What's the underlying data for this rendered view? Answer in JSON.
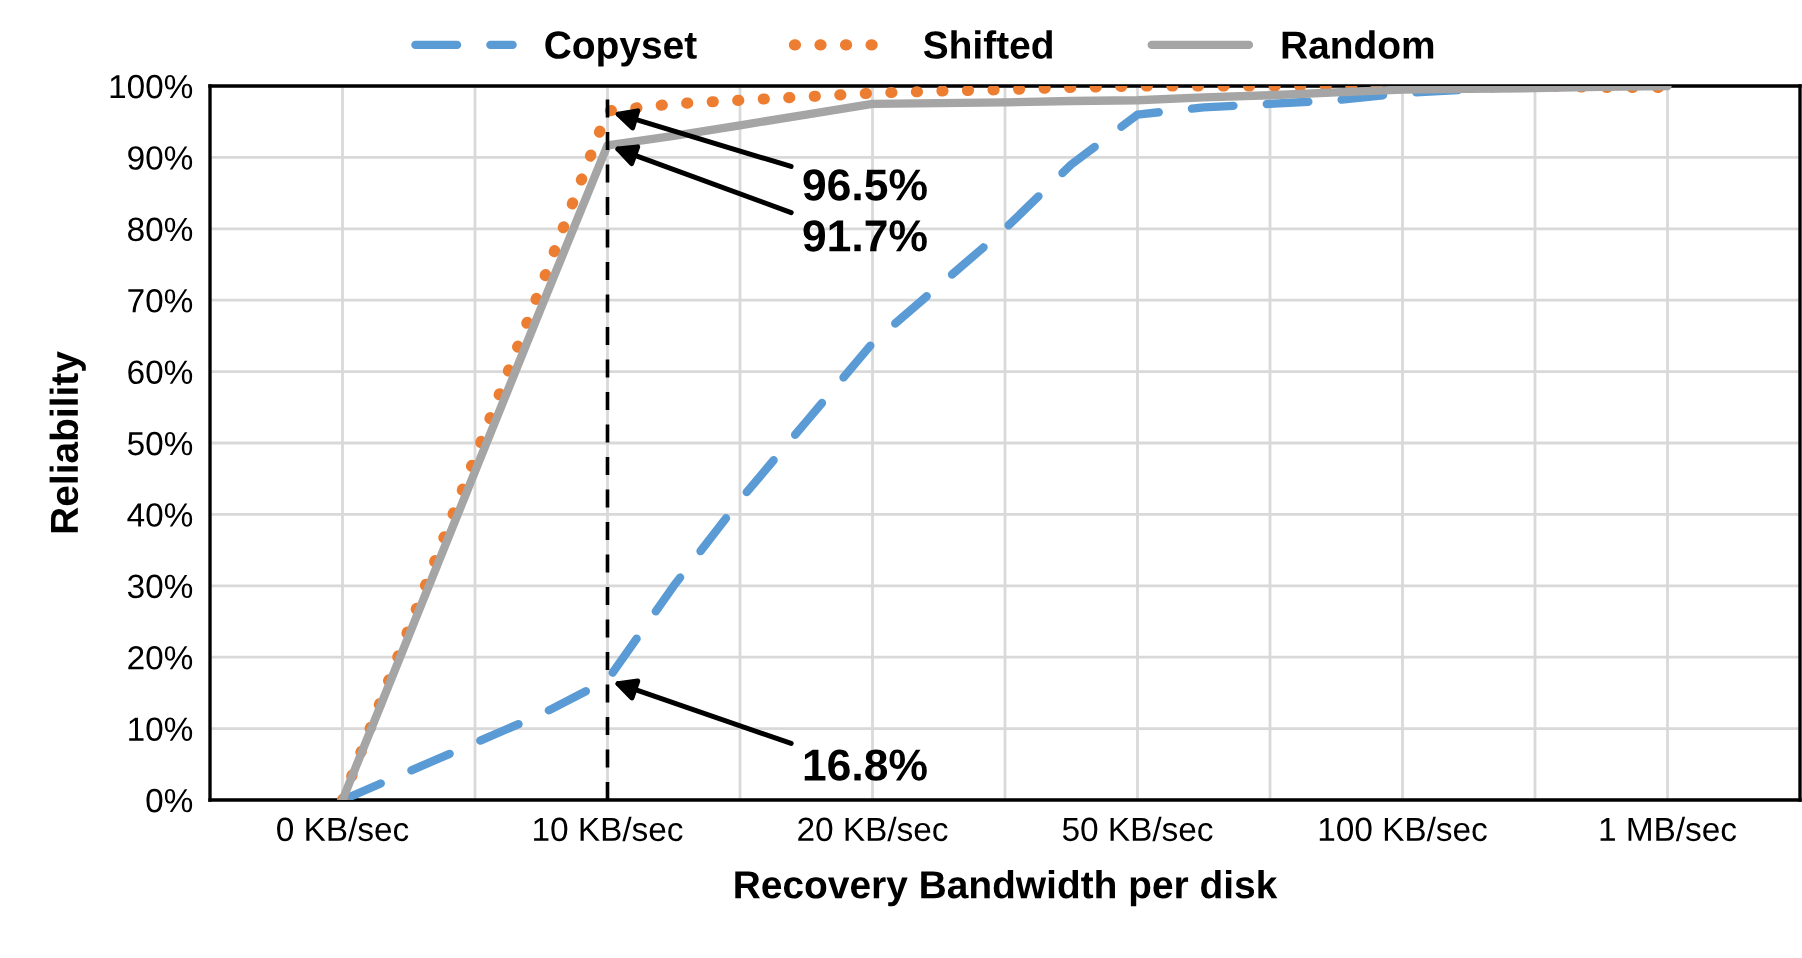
{
  "chart_data": {
    "type": "line",
    "xlabel": "Recovery Bandwidth per disk",
    "ylabel": "Reliability",
    "categories": [
      "0 KB/sec",
      null,
      null,
      null,
      "10 KB/sec",
      null,
      null,
      null,
      "20 KB/sec",
      null,
      null,
      null,
      "50 KB/sec",
      null,
      null,
      null,
      "100 KB/sec",
      null,
      null,
      null,
      "1 MB/sec"
    ],
    "ylim": [
      0,
      100
    ],
    "yticks": [
      {
        "value": 0,
        "label": "0%"
      },
      {
        "value": 10,
        "label": "10%"
      },
      {
        "value": 20,
        "label": "20%"
      },
      {
        "value": 30,
        "label": "30%"
      },
      {
        "value": 40,
        "label": "40%"
      },
      {
        "value": 50,
        "label": "50%"
      },
      {
        "value": 60,
        "label": "60%"
      },
      {
        "value": 70,
        "label": "70%"
      },
      {
        "value": 80,
        "label": "80%"
      },
      {
        "value": 90,
        "label": "90%"
      },
      {
        "value": 100,
        "label": "100%"
      }
    ],
    "grid": true,
    "legend": "top",
    "series": [
      {
        "name": "Copyset",
        "color": "#5b9bd5",
        "line_style": "dashed",
        "values": [
          0,
          4,
          8,
          12,
          16.8,
          30,
          42,
          53,
          64,
          72,
          80,
          89,
          96,
          97,
          97.5,
          98,
          99,
          99.5,
          100,
          null,
          null
        ]
      },
      {
        "name": "Shifted",
        "color": "#ed7d31",
        "line_style": "dotted",
        "values": [
          0,
          24,
          48,
          72,
          96.5,
          97.5,
          98,
          98.5,
          99,
          99.3,
          99.5,
          99.8,
          100,
          100,
          100,
          100,
          100,
          100,
          100,
          99.8,
          99.8
        ]
      },
      {
        "name": "Random",
        "color": "#a5a5a5",
        "line_style": "solid",
        "values": [
          0,
          23,
          46,
          69,
          91.7,
          93,
          94.5,
          96,
          97.5,
          97.6,
          97.7,
          97.9,
          98,
          98.4,
          98.7,
          99.1,
          99.5,
          99.6,
          99.7,
          99.9,
          100
        ]
      }
    ],
    "ref_lines": [
      {
        "axis": "x",
        "value": "10 KB/sec",
        "color": "#000000",
        "line_style": "dashed"
      }
    ],
    "annotations": [
      {
        "text": "96.5%",
        "x": "10 KB/sec",
        "y": 96.5
      },
      {
        "text": "91.7%",
        "x": "10 KB/sec",
        "y": 91.7
      },
      {
        "text": "16.8%",
        "x": "10 KB/sec",
        "y": 16.8
      }
    ]
  }
}
